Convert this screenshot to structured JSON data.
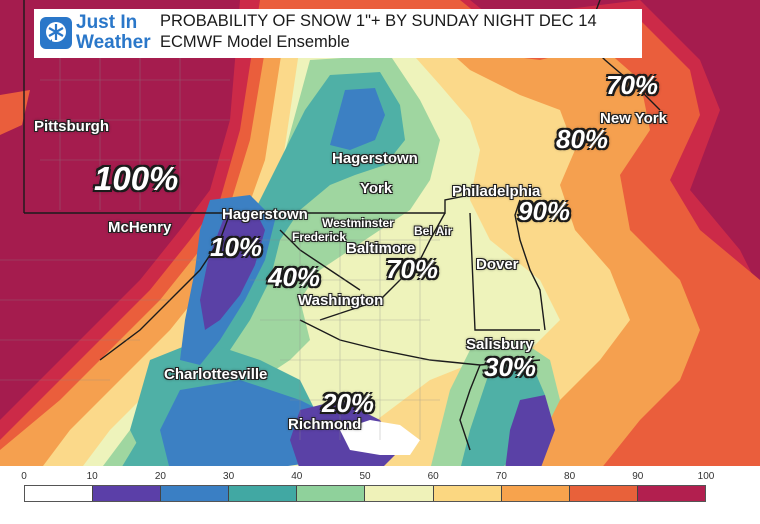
{
  "header": {
    "logo_line1": "Just In",
    "logo_line2": "Weather",
    "title": "PROBABILITY OF SNOW 1\"+ BY SUNDAY NIGHT DEC 14",
    "subtitle": "ECMWF Model Ensemble"
  },
  "cities": {
    "pittsburgh": "Pittsburgh",
    "hagerstown_north": "Hagerstown",
    "york": "York",
    "mchenry": "McHenry",
    "hagerstown": "Hagerstown",
    "westminster": "Westminster",
    "frederick": "Frederick",
    "bel_air": "Bel Air",
    "baltimore": "Baltimore",
    "philadelphia": "Philadelphia",
    "new_york": "New York",
    "dover": "Dover",
    "washington": "Washington",
    "salisbury": "Salisbury",
    "charlottesville": "Charlottesville",
    "richmond": "Richmond"
  },
  "probabilities": {
    "pittsburgh_area": "100%",
    "hagerstown_west": "10%",
    "frederick_area": "40%",
    "baltimore_area": "70%",
    "philadelphia_area": "90%",
    "new_york_area": "80%",
    "north_ny": "70%",
    "salisbury_area": "30%",
    "richmond_area": "20%"
  },
  "legend": {
    "ticks": [
      "0",
      "10",
      "20",
      "30",
      "40",
      "50",
      "60",
      "70",
      "80",
      "90",
      "100"
    ],
    "colors": [
      "#ffffff",
      "#5b3fa8",
      "#3a7fc4",
      "#41a8a3",
      "#8fd19b",
      "#eff2b9",
      "#fbd781",
      "#f7a34d",
      "#e8613a",
      "#b21f4f"
    ]
  },
  "map_colors": {
    "p100": "#a51c4e",
    "p90": "#cc2a48",
    "p80": "#ea5e3c",
    "p70": "#f5a04f",
    "p60": "#fbd98a",
    "p50": "#eef3bb",
    "p40": "#9fd6a0",
    "p30": "#4fb0a6",
    "p20": "#3c80c3",
    "p10": "#5a41a6",
    "water": "#ffffff"
  }
}
